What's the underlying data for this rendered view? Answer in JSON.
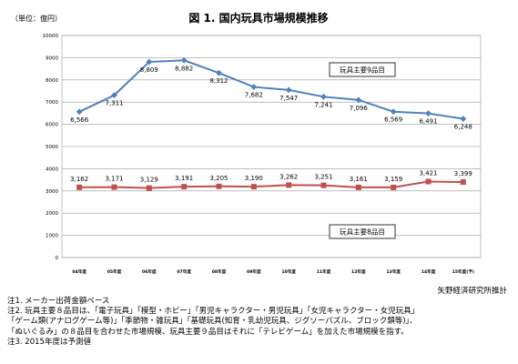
{
  "chart_data": {
    "type": "line",
    "title": "図 1. 国内玩具市場規模推移",
    "unit_label": "（単位：億円）",
    "categories": [
      "04年度",
      "05年度",
      "06年度",
      "07年度",
      "08年度",
      "09年度",
      "10年度",
      "11年度",
      "12年度",
      "13年度",
      "14年度",
      "15年度(予)"
    ],
    "ylim": [
      0,
      10000
    ],
    "yticks": [
      0,
      1000,
      2000,
      3000,
      4000,
      5000,
      6000,
      7000,
      8000,
      9000,
      10000
    ],
    "grid": true,
    "series": [
      {
        "name": "玩具主要9品目",
        "color": "#4f81bd",
        "values": [
          6566,
          7311,
          8809,
          8882,
          8312,
          7682,
          7547,
          7241,
          7096,
          6569,
          6491,
          6248
        ],
        "labels": [
          "6,566",
          "7,311",
          "8,809",
          "8,882",
          "8,312",
          "7,682",
          "7,547",
          "7,241",
          "7,096",
          "6,569",
          "6,491",
          "6,248"
        ]
      },
      {
        "name": "玩具主要8品目",
        "color": "#c0504d",
        "values": [
          3162,
          3171,
          3129,
          3191,
          3205,
          3190,
          3262,
          3251,
          3161,
          3159,
          3421,
          3399
        ],
        "labels": [
          "3,162",
          "3,171",
          "3,129",
          "3,191",
          "3,205",
          "3,190",
          "3,262",
          "3,251",
          "3,161",
          "3,159",
          "3,421",
          "3,399"
        ]
      }
    ]
  },
  "source": "矢野経済研究所推計",
  "notes": [
    "注1. メーカー出荷金額ベース",
    "注2. 玩具主要８品目は、「電子玩具」「模型・ホビー」「男児キャラクター・男児玩具」「女児キャラクター・女児玩具」",
    "「ゲーム類(アナログゲーム等)」「季節物・雑玩具」「基礎玩具(知育・乳幼児玩具、ジグソーパズル、ブロック類等)」、",
    "「ぬいぐるみ」の８品目を合わせた市場規模、玩具主要９品目はそれに「テレビゲーム」を加えた市場規模を指す。",
    "注3. 2015年度は予測値"
  ]
}
